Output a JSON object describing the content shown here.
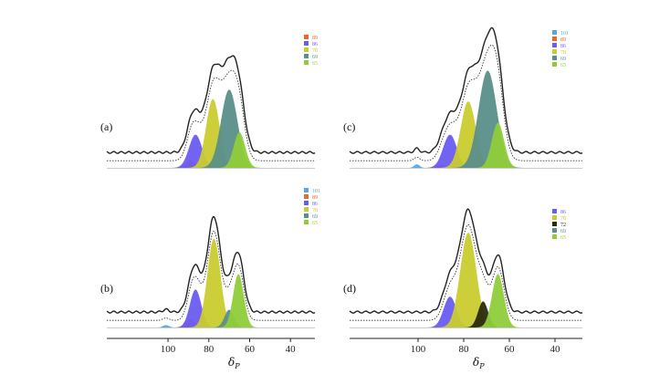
{
  "chart_data": [
    {
      "id": "a",
      "type": "area",
      "panel_label": "(a)",
      "x_reversed": true,
      "xlim": [
        130,
        28
      ],
      "peaks": [
        {
          "name": "89",
          "color": "#f26522",
          "center": 89.0,
          "height": 0.07,
          "width": 2.2
        },
        {
          "name": "86",
          "color": "#6a5cf2",
          "center": 86.5,
          "height": 0.28,
          "width": 3.2
        },
        {
          "name": "78",
          "color": "#c9cc2e",
          "center": 78.0,
          "height": 0.58,
          "width": 3.3
        },
        {
          "name": "69",
          "color": "#5a8f8a",
          "center": 70.0,
          "height": 0.66,
          "width": 4.0
        },
        {
          "name": "65",
          "color": "#8fcc3a",
          "center": 65.0,
          "height": 0.3,
          "width": 2.8
        }
      ]
    },
    {
      "id": "b",
      "type": "area",
      "panel_label": "(b)",
      "x_reversed": true,
      "xlim": [
        130,
        28
      ],
      "peaks": [
        {
          "name": "101",
          "color": "#55a8e8",
          "center": 101.0,
          "height": 0.02,
          "width": 1.5
        },
        {
          "name": "89",
          "color": "#f26522",
          "center": 89.0,
          "height": 0.07,
          "width": 2.2
        },
        {
          "name": "86",
          "color": "#6a5cf2",
          "center": 86.5,
          "height": 0.32,
          "width": 2.8
        },
        {
          "name": "78",
          "color": "#c9cc2e",
          "center": 77.5,
          "height": 0.75,
          "width": 3.2
        },
        {
          "name": "69",
          "color": "#5a8f8a",
          "center": 70.0,
          "height": 0.15,
          "width": 2.3
        },
        {
          "name": "65",
          "color": "#8fcc3a",
          "center": 65.5,
          "height": 0.45,
          "width": 2.6
        }
      ]
    },
    {
      "id": "c",
      "type": "area",
      "panel_label": "(c)",
      "x_reversed": true,
      "xlim": [
        130,
        28
      ],
      "peaks": [
        {
          "name": "101",
          "color": "#55a8e8",
          "center": 100.5,
          "height": 0.03,
          "width": 1.2
        },
        {
          "name": "89",
          "color": "#f26522",
          "center": 90.0,
          "height": 0.03,
          "width": 2.0
        },
        {
          "name": "86",
          "color": "#6a5cf2",
          "center": 86.0,
          "height": 0.28,
          "width": 3.0
        },
        {
          "name": "78",
          "color": "#c9cc2e",
          "center": 78.0,
          "height": 0.56,
          "width": 3.3
        },
        {
          "name": "69",
          "color": "#5a8f8a",
          "center": 69.5,
          "height": 0.82,
          "width": 4.0
        },
        {
          "name": "65",
          "color": "#8fcc3a",
          "center": 65.0,
          "height": 0.38,
          "width": 2.7
        }
      ]
    },
    {
      "id": "d",
      "type": "area",
      "panel_label": "(d)",
      "x_reversed": true,
      "xlim": [
        130,
        28
      ],
      "peaks": [
        {
          "name": "86",
          "color": "#6a5cf2",
          "center": 86.0,
          "height": 0.26,
          "width": 2.8
        },
        {
          "name": "78",
          "color": "#c9cc2e",
          "center": 78.0,
          "height": 0.8,
          "width": 3.5
        },
        {
          "name": "72",
          "color": "#2a2a10",
          "center": 71.5,
          "height": 0.22,
          "width": 2.2
        },
        {
          "name": "69",
          "color": "#5a8f8a",
          "center": 70.0,
          "height": 0.02,
          "width": 1.5
        },
        {
          "name": "65",
          "color": "#8fcc3a",
          "center": 65.0,
          "height": 0.45,
          "width": 2.6
        }
      ]
    }
  ],
  "x_axis": {
    "label": "δP",
    "ticks": [
      100,
      80,
      60,
      40
    ]
  }
}
